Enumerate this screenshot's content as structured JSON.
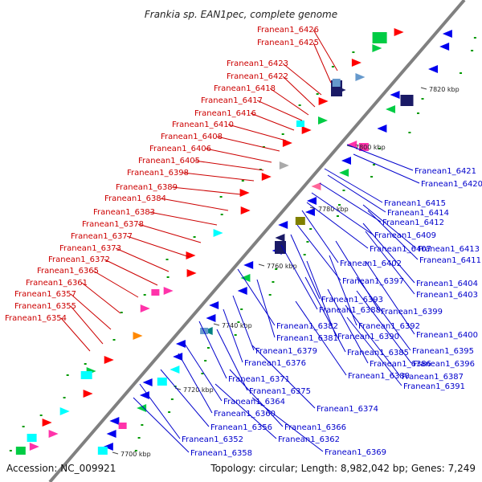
{
  "title": "Frankia sp. EAN1pec, complete genome",
  "footer": {
    "accession": "Accession: NC_009921",
    "topology": "Topology: circular; Length: 8,982,042 bp; Genes: 7,249"
  },
  "colors": {
    "forward_label": "#cc0000",
    "reverse_label": "#0000cc",
    "backbone": "#808080"
  },
  "kbp_markers": [
    "7700 kbp",
    "7720 kbp",
    "7740 kbp",
    "7760 kbp",
    "7780 kbp",
    "7800 kbp",
    "7820 kbp"
  ],
  "forward_genes": [
    "Franean1_6426",
    "Franean1_6425",
    "Franean1_6423",
    "Franean1_6422",
    "Franean1_6418",
    "Franean1_6417",
    "Franean1_6416",
    "Franean1_6410",
    "Franean1_6408",
    "Franean1_6406",
    "Franean1_6405",
    "Franean1_6398",
    "Franean1_6389",
    "Franean1_6384",
    "Franean1_6383",
    "Franean1_6378",
    "Franean1_6377",
    "Franean1_6373",
    "Franean1_6372",
    "Franean1_6365",
    "Franean1_6361",
    "Franean1_6357",
    "Franean1_6355",
    "Franean1_6354"
  ],
  "reverse_genes": [
    "Franean1_6421",
    "Franean1_6420",
    "Franean1_6415",
    "Franean1_6414",
    "Franean1_6412",
    "Franean1_6409",
    "Franean1_6407",
    "Franean1_6413",
    "Franean1_6411",
    "Franean1_6402",
    "Franean1_6397",
    "Franean1_6404",
    "Franean1_6403",
    "Franean1_6393",
    "Franean1_6399",
    "Franean1_6388",
    "Franean1_6382",
    "Franean1_6392",
    "Franean1_6390",
    "Franean1_6400",
    "Franean1_6381",
    "Franean1_6385",
    "Franean1_6395",
    "Franean1_6379",
    "Franean1_6386",
    "Franean1_6396",
    "Franean1_6376",
    "Franean1_6380",
    "Franean1_6387",
    "Franean1_6371",
    "Franean1_6391",
    "Franean1_6375",
    "Franean1_6364",
    "Franean1_6374",
    "Franean1_6360",
    "Franean1_6356",
    "Franean1_6366",
    "Franean1_6352",
    "Franean1_6362",
    "Franean1_6358",
    "Franean1_6369"
  ]
}
